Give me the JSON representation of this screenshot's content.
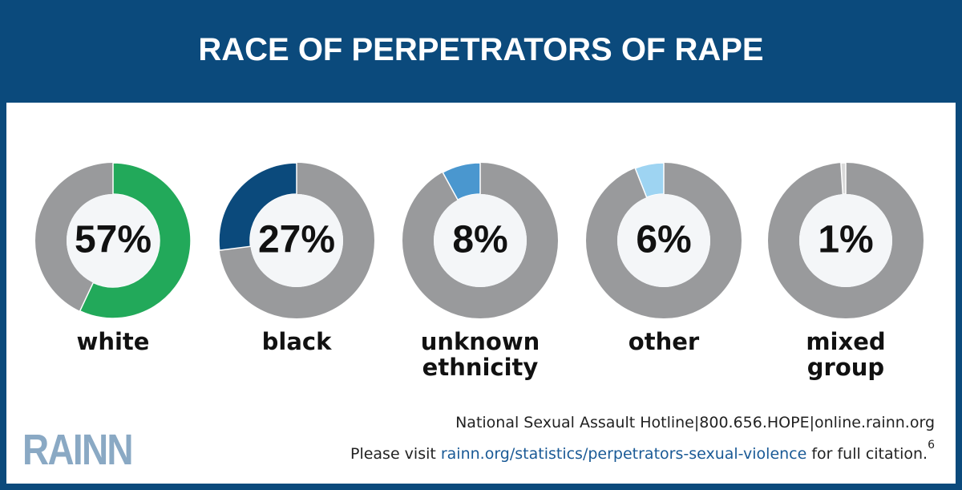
{
  "header": {
    "title": "RACE OF PERPETRATORS OF RAPE"
  },
  "chart_data": [
    {
      "type": "donut",
      "categories": [
        "white"
      ],
      "values": [
        57
      ],
      "value_labels": [
        "57%"
      ],
      "color": "#22a95a",
      "clockwise": true
    },
    {
      "type": "donut",
      "categories": [
        "black"
      ],
      "values": [
        27
      ],
      "value_labels": [
        "27%"
      ],
      "color": "#0b4a7c",
      "clockwise": false
    },
    {
      "type": "donut",
      "categories": [
        "unknown ethnicity"
      ],
      "values": [
        8
      ],
      "value_labels": [
        "8%"
      ],
      "color": "#4a97cf",
      "clockwise": false
    },
    {
      "type": "donut",
      "categories": [
        "other"
      ],
      "values": [
        6
      ],
      "value_labels": [
        "6%"
      ],
      "color": "#9ed4f2",
      "clockwise": false
    },
    {
      "type": "donut",
      "categories": [
        "mixed group"
      ],
      "values": [
        1
      ],
      "value_labels": [
        "1%"
      ],
      "color": "#d9d9d9",
      "clockwise": false
    }
  ],
  "footer": {
    "logo": "RAINN",
    "hotline": "National Sexual Assault Hotline|800.656.HOPE|online.rainn.org",
    "citation": [
      "Please visit",
      "rainn.org/statistics/perpetrators-sexual-violence",
      "for full citation."
    ],
    "footnote": "6"
  }
}
